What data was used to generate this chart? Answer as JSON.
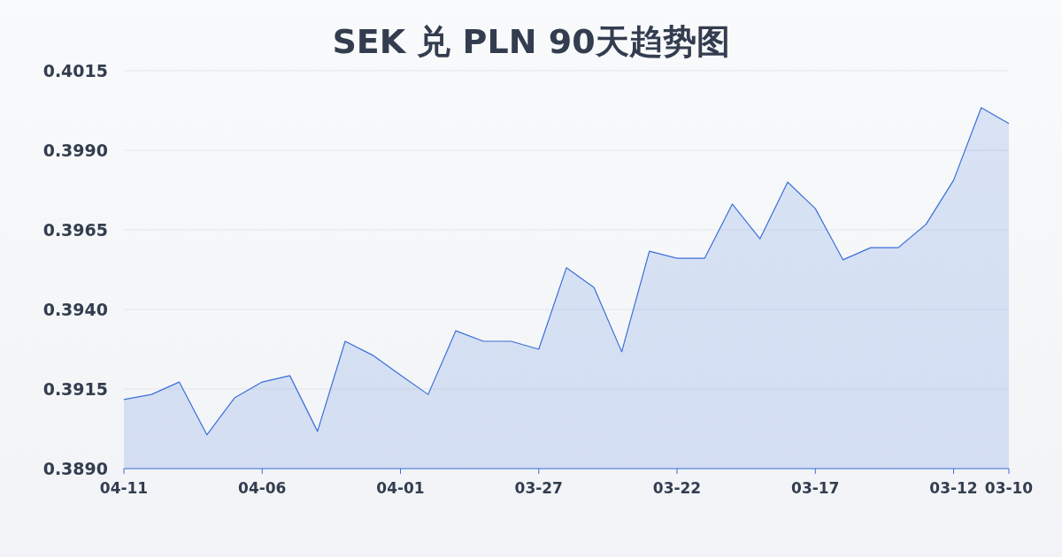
{
  "chart_data": {
    "type": "area",
    "title": "SEK 兑 PLN 90天趋势图",
    "categories": [
      "04-11",
      null,
      null,
      null,
      null,
      "04-06",
      null,
      null,
      null,
      null,
      "04-01",
      null,
      null,
      null,
      null,
      "03-27",
      null,
      null,
      null,
      null,
      "03-22",
      null,
      null,
      null,
      null,
      "03-17",
      null,
      null,
      null,
      null,
      "03-12",
      null,
      "03-10"
    ],
    "series": [
      {
        "color": "#3a6fd8",
        "values": [
          0.39117,
          0.39133,
          0.39172,
          0.39006,
          0.39122,
          0.39172,
          0.39192,
          0.39017,
          0.393,
          0.39256,
          0.39194,
          0.39133,
          0.39333,
          0.393,
          0.393,
          0.39275,
          0.39531,
          0.39469,
          0.39267,
          0.39583,
          0.39561,
          0.39561,
          0.39731,
          0.39622,
          0.398,
          0.39717,
          0.39556,
          0.39594,
          0.39594,
          0.39667,
          0.39806,
          0.40034,
          0.39984
        ]
      }
    ],
    "ylim": [
      0.389,
      0.4015
    ],
    "yticks": [
      {
        "value": 0.389,
        "label": "0.3890"
      },
      {
        "value": 0.3915,
        "label": "0.3915"
      },
      {
        "value": 0.394,
        "label": "0.3940"
      },
      {
        "value": 0.3965,
        "label": "0.3965"
      },
      {
        "value": 0.399,
        "label": "0.3990"
      },
      {
        "value": 0.4015,
        "label": "0.4015"
      }
    ],
    "grid": "y",
    "marker": "none"
  }
}
